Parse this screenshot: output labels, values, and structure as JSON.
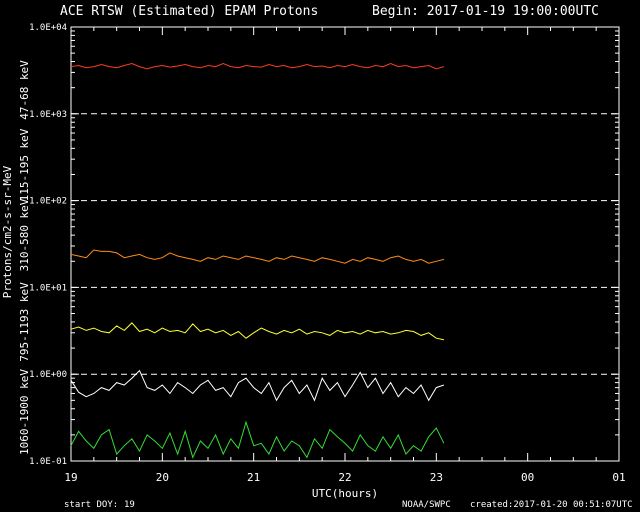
{
  "header": {
    "title": "ACE RTSW (Estimated) EPAM Protons",
    "begin": "Begin: 2017-01-19 19:00:00UTC"
  },
  "footer": {
    "start_doy_label": "start DOY:",
    "start_doy_value": "19",
    "source": "NOAA/SWPC",
    "created": "created:2017-01-20 00:51:07UTC"
  },
  "chart_data": {
    "type": "line",
    "xlabel": "UTC(hours)",
    "ylabel": "Protons/cm2-s-sr-MeV",
    "x_range_hours": [
      19,
      25
    ],
    "x_tick_labels": [
      "19",
      "20",
      "21",
      "22",
      "23",
      "00",
      "01"
    ],
    "y_scale": "log",
    "ylim": [
      0.1,
      10000
    ],
    "y_tick_labels": [
      "1.0E-01",
      "1.0E+00",
      "1.0E+01",
      "1.0E+02",
      "1.0E+03",
      "1.0E+04"
    ],
    "gridlines_y": [
      1,
      10,
      100,
      1000
    ],
    "x_step_hours": 0.08333,
    "series": [
      {
        "name": "47-68 keV",
        "color": "#ff3b1f",
        "values": [
          3500,
          3600,
          3400,
          3500,
          3700,
          3500,
          3400,
          3600,
          3800,
          3500,
          3300,
          3500,
          3600,
          3450,
          3550,
          3700,
          3500,
          3400,
          3600,
          3500,
          3800,
          3500,
          3400,
          3600,
          3500,
          3450,
          3700,
          3500,
          3600,
          3400,
          3500,
          3700,
          3500,
          3550,
          3400,
          3600,
          3500,
          3700,
          3500,
          3400,
          3600,
          3500,
          3800,
          3500,
          3600,
          3400,
          3500,
          3600,
          3300,
          3500
        ]
      },
      {
        "name": "115-195 keV",
        "color": "#ff8c1a",
        "values": [
          24,
          23,
          22,
          27,
          26,
          26,
          25,
          22,
          23,
          24,
          22,
          21,
          22,
          25,
          23,
          22,
          21,
          20,
          22,
          21,
          23,
          22,
          21,
          23,
          22,
          21,
          20,
          22,
          21,
          23,
          22,
          21,
          20,
          22,
          21,
          20,
          19,
          21,
          20,
          22,
          21,
          20,
          22,
          23,
          21,
          20,
          21,
          19,
          20,
          21
        ]
      },
      {
        "name": "310-580 keV",
        "color": "#ffff33",
        "values": [
          3.3,
          3.5,
          3.2,
          3.4,
          3.1,
          3.0,
          3.6,
          3.2,
          3.9,
          3.1,
          3.3,
          3.0,
          3.4,
          3.1,
          3.2,
          3.0,
          3.8,
          3.1,
          3.3,
          3.0,
          3.2,
          2.8,
          3.1,
          2.6,
          3.0,
          3.4,
          3.1,
          2.9,
          3.2,
          3.0,
          3.3,
          2.9,
          3.1,
          3.0,
          2.8,
          3.2,
          3.0,
          3.1,
          2.9,
          3.2,
          3.0,
          3.1,
          2.9,
          3.0,
          3.2,
          3.1,
          2.8,
          3.0,
          2.6,
          2.5
        ]
      },
      {
        "name": "795-1193 keV",
        "color": "#ffffff",
        "values": [
          0.85,
          0.62,
          0.55,
          0.6,
          0.7,
          0.65,
          0.8,
          0.75,
          0.9,
          1.1,
          0.7,
          0.65,
          0.75,
          0.6,
          0.8,
          0.7,
          0.6,
          0.75,
          0.85,
          0.65,
          0.7,
          0.55,
          0.8,
          0.9,
          0.7,
          0.6,
          0.8,
          0.5,
          0.7,
          0.85,
          0.6,
          0.75,
          0.5,
          0.9,
          0.65,
          0.8,
          0.55,
          0.75,
          1.05,
          0.7,
          0.9,
          0.6,
          0.8,
          0.55,
          0.7,
          0.6,
          0.75,
          0.5,
          0.7,
          0.75
        ]
      },
      {
        "name": "1060-1900 keV",
        "color": "#33dd33",
        "values": [
          0.15,
          0.22,
          0.17,
          0.14,
          0.2,
          0.23,
          0.12,
          0.15,
          0.18,
          0.13,
          0.2,
          0.17,
          0.14,
          0.21,
          0.12,
          0.22,
          0.11,
          0.17,
          0.14,
          0.2,
          0.12,
          0.18,
          0.14,
          0.28,
          0.15,
          0.16,
          0.12,
          0.19,
          0.13,
          0.17,
          0.15,
          0.11,
          0.18,
          0.14,
          0.23,
          0.19,
          0.16,
          0.13,
          0.2,
          0.15,
          0.13,
          0.19,
          0.14,
          0.2,
          0.12,
          0.15,
          0.13,
          0.19,
          0.24,
          0.16
        ]
      }
    ]
  }
}
